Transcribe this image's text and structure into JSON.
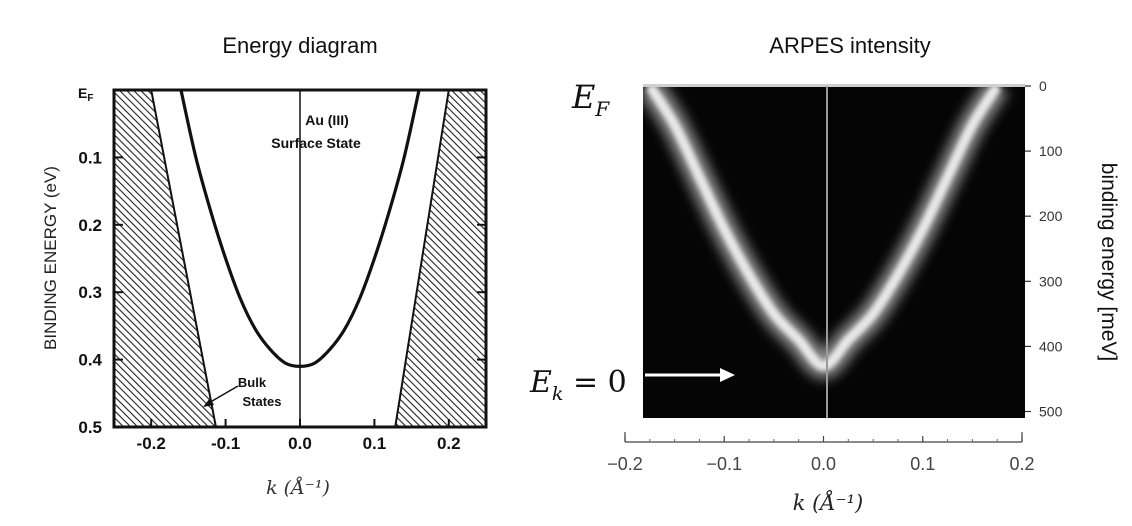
{
  "left_panel": {
    "title": "Energy diagram",
    "ylabel": "BINDING ENERGY (eV)",
    "xlabel": "k (Å⁻¹)",
    "ytick_ef": "E",
    "ytick_ef_sub": "F",
    "surface_label_line1": "Au (III)",
    "surface_label_line2": "Surface State",
    "bulk_label_line1": "Bulk",
    "bulk_label_line2": "States"
  },
  "right_panel": {
    "title": "ARPES intensity",
    "ylabel": "binding energy [meV]",
    "xlabel": "k (Å⁻¹)",
    "ef_label_main": "E",
    "ef_label_sub": "F",
    "ek_label_main": "E",
    "ek_label_sub": "k",
    "ek_label_rest": " = 0"
  },
  "chart_data": [
    {
      "type": "line",
      "title": "Energy diagram",
      "xlabel": "k (Å⁻¹)",
      "ylabel": "BINDING ENERGY (eV)",
      "xlim": [
        -0.25,
        0.25
      ],
      "ylim": [
        0,
        0.5
      ],
      "y_inverted": true,
      "x_ticks": [
        "-0.2",
        "-0.1",
        "0.0",
        "0.1",
        "0.2"
      ],
      "x_tick_values": [
        -0.2,
        -0.1,
        0.0,
        0.1,
        0.2
      ],
      "y_ticks": [
        "E_F",
        "0.1",
        "0.2",
        "0.3",
        "0.4",
        "0.5"
      ],
      "y_tick_values": [
        0,
        0.1,
        0.2,
        0.3,
        0.4,
        0.5
      ],
      "series": [
        {
          "name": "Surface State",
          "x": [
            -0.16,
            -0.14,
            -0.12,
            -0.1,
            -0.08,
            -0.06,
            -0.04,
            -0.02,
            0.0,
            0.02,
            0.04,
            0.06,
            0.08,
            0.1,
            0.12,
            0.14,
            0.16
          ],
          "y": [
            0.0,
            0.1,
            0.18,
            0.25,
            0.31,
            0.355,
            0.385,
            0.405,
            0.41,
            0.405,
            0.385,
            0.355,
            0.31,
            0.25,
            0.18,
            0.1,
            0.0
          ]
        }
      ],
      "shaded_regions": [
        {
          "name": "Bulk States",
          "polygon_x": [
            -0.25,
            -0.2,
            -0.113,
            -0.25
          ],
          "polygon_y": [
            0.0,
            0.0,
            0.5,
            0.5
          ]
        },
        {
          "name": "Bulk States",
          "polygon_x": [
            0.2,
            0.25,
            0.25,
            0.128
          ],
          "polygon_y": [
            0.0,
            0.0,
            0.5,
            0.5
          ]
        }
      ]
    },
    {
      "type": "heatmap",
      "title": "ARPES intensity",
      "xlabel": "k (Å⁻¹)",
      "ylabel": "binding energy [meV]",
      "xlim": [
        -0.2,
        0.2
      ],
      "ylim": [
        0,
        510
      ],
      "y_inverted": true,
      "x_ticks": [
        "−0.2",
        "−0.1",
        "0.0",
        "0.1",
        "0.2"
      ],
      "x_tick_values": [
        -0.2,
        -0.1,
        0.0,
        0.1,
        0.2
      ],
      "y_ticks": [
        "0",
        "100",
        "200",
        "300",
        "400",
        "500"
      ],
      "y_tick_values": [
        0,
        100,
        200,
        300,
        400,
        500
      ],
      "band": {
        "x": [
          -0.175,
          -0.15,
          -0.125,
          -0.1,
          -0.075,
          -0.05,
          -0.025,
          0.0,
          0.025,
          0.05,
          0.075,
          0.1,
          0.125,
          0.15,
          0.175
        ],
        "y": [
          0,
          60,
          140,
          220,
          290,
          350,
          390,
          430,
          390,
          350,
          290,
          220,
          140,
          60,
          0
        ]
      },
      "ek_zero_meV": 430,
      "colors": {
        "background": "#050505",
        "band": "#e8e8e8"
      }
    }
  ]
}
